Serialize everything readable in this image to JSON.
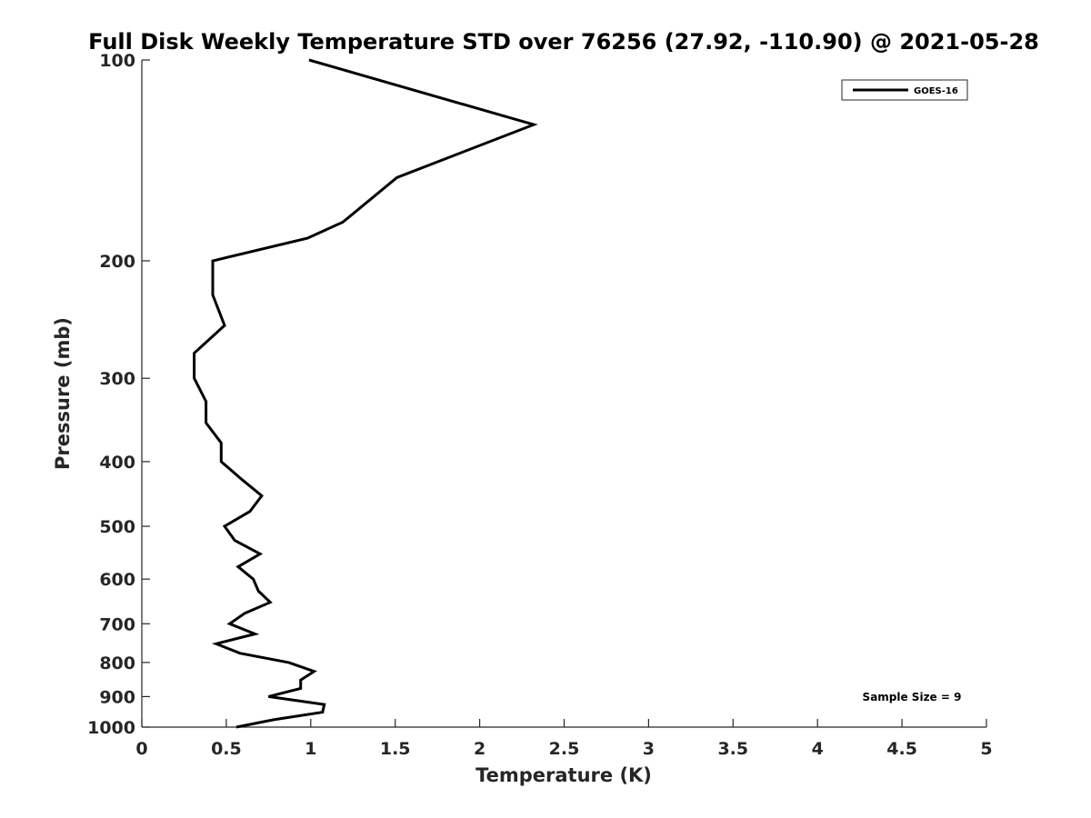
{
  "chart_data": {
    "type": "line",
    "title": "Full Disk Weekly Temperature STD over 76256 (27.92, -110.90) @ 2021-05-28",
    "xlabel": "Temperature (K)",
    "ylabel": "Pressure (mb)",
    "xlim": [
      0,
      5
    ],
    "ylim": [
      100,
      1000
    ],
    "y_scale": "log",
    "y_reversed": true,
    "grid": false,
    "legend_position": "top-right",
    "x_ticks": [
      "0",
      "0.5",
      "1",
      "1.5",
      "2",
      "2.5",
      "3",
      "3.5",
      "4",
      "4.5",
      "5"
    ],
    "y_ticks": [
      "100",
      "200",
      "300",
      "400",
      "500",
      "600",
      "700",
      "800",
      "900",
      "1000"
    ],
    "annotation": "Sample Size = 9",
    "series": [
      {
        "name": "GOES-16",
        "color": "#000000",
        "points": [
          {
            "pressure": 100,
            "value": 0.99
          },
          {
            "pressure": 125,
            "value": 2.32
          },
          {
            "pressure": 150,
            "value": 1.51
          },
          {
            "pressure": 175,
            "value": 1.19
          },
          {
            "pressure": 185,
            "value": 0.98
          },
          {
            "pressure": 200,
            "value": 0.42
          },
          {
            "pressure": 225,
            "value": 0.42
          },
          {
            "pressure": 250,
            "value": 0.49
          },
          {
            "pressure": 275,
            "value": 0.31
          },
          {
            "pressure": 300,
            "value": 0.31
          },
          {
            "pressure": 325,
            "value": 0.38
          },
          {
            "pressure": 350,
            "value": 0.38
          },
          {
            "pressure": 375,
            "value": 0.47
          },
          {
            "pressure": 400,
            "value": 0.47
          },
          {
            "pressure": 425,
            "value": 0.59
          },
          {
            "pressure": 450,
            "value": 0.71
          },
          {
            "pressure": 475,
            "value": 0.64
          },
          {
            "pressure": 500,
            "value": 0.49
          },
          {
            "pressure": 525,
            "value": 0.55
          },
          {
            "pressure": 550,
            "value": 0.7
          },
          {
            "pressure": 575,
            "value": 0.57
          },
          {
            "pressure": 600,
            "value": 0.66
          },
          {
            "pressure": 625,
            "value": 0.69
          },
          {
            "pressure": 650,
            "value": 0.76
          },
          {
            "pressure": 675,
            "value": 0.61
          },
          {
            "pressure": 700,
            "value": 0.52
          },
          {
            "pressure": 725,
            "value": 0.67
          },
          {
            "pressure": 750,
            "value": 0.44
          },
          {
            "pressure": 775,
            "value": 0.58
          },
          {
            "pressure": 800,
            "value": 0.87
          },
          {
            "pressure": 825,
            "value": 1.02
          },
          {
            "pressure": 850,
            "value": 0.94
          },
          {
            "pressure": 875,
            "value": 0.94
          },
          {
            "pressure": 900,
            "value": 0.75
          },
          {
            "pressure": 925,
            "value": 1.08
          },
          {
            "pressure": 950,
            "value": 1.07
          },
          {
            "pressure": 975,
            "value": 0.78
          },
          {
            "pressure": 1000,
            "value": 0.56
          }
        ]
      }
    ]
  }
}
